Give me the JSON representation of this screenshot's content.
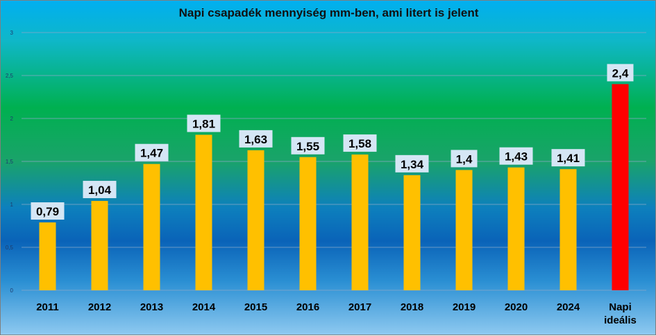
{
  "chart_data": {
    "type": "bar",
    "title": "Napi csapadék mennyiség mm-ben, ami litert is jelent",
    "categories": [
      "2011",
      "2012",
      "2013",
      "2014",
      "2015",
      "2016",
      "2017",
      "2018",
      "2019",
      "2020",
      "2024",
      "Napi ideális"
    ],
    "values": [
      0.79,
      1.04,
      1.47,
      1.81,
      1.63,
      1.55,
      1.58,
      1.34,
      1.4,
      1.43,
      1.41,
      2.4
    ],
    "value_labels": [
      "0,79",
      "1,04",
      "1,47",
      "1,81",
      "1,63",
      "1,55",
      "1,58",
      "1,34",
      "1,4",
      "1,43",
      "1,41",
      "2,4"
    ],
    "ylim": [
      0,
      3
    ],
    "yticks": [
      "0",
      "0,5",
      "1",
      "1,5",
      "2",
      "2,5",
      "3"
    ],
    "grid": true,
    "legend": "none",
    "colors": {
      "bar": "#ffc000",
      "highlight_bar": "#ff0000",
      "grid": "#8aa8c8"
    },
    "highlight_index": 11
  }
}
